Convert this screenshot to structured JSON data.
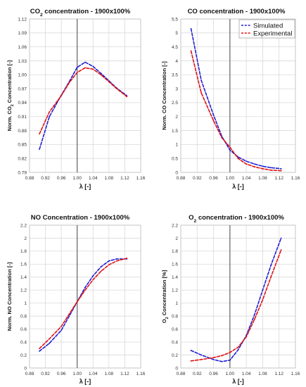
{
  "colors": {
    "simulated": "#1f1fd6",
    "experimental": "#e01010",
    "grid": "#d9d9d9",
    "refline": "#555555"
  },
  "chart_data": [
    {
      "type": "line",
      "title_parts": [
        "CO",
        "2",
        " concentration - 1900x100%"
      ],
      "xlabel": "λ [-]",
      "ylabel_parts": [
        "Norm. CO",
        "2",
        " Concentration [-]"
      ],
      "xlim": [
        0.88,
        1.16
      ],
      "ylim": [
        0.79,
        1.12
      ],
      "xticks": [
        "0.88",
        "0.92",
        "0.96",
        "1.00",
        "1.04",
        "1.08",
        "1.12",
        "1.16"
      ],
      "yticks": [
        "0.79",
        "0.82",
        "0.85",
        "0.88",
        "0.91",
        "0.94",
        "0.97",
        "1.00",
        "1.03",
        "1.06",
        "1.09",
        "1.12"
      ],
      "refline_x": 1.0,
      "grid": true,
      "series": [
        {
          "name": "Simulated",
          "x": [
            0.905,
            0.93,
            0.96,
            0.98,
            1.0,
            1.02,
            1.04,
            1.06,
            1.08,
            1.1,
            1.125
          ],
          "y": [
            0.84,
            0.91,
            0.956,
            0.985,
            1.016,
            1.027,
            1.018,
            1.003,
            0.987,
            0.971,
            0.955
          ]
        },
        {
          "name": "Experimental",
          "x": [
            0.905,
            0.93,
            0.96,
            0.98,
            1.0,
            1.02,
            1.04,
            1.06,
            1.08,
            1.1,
            1.125
          ],
          "y": [
            0.873,
            0.92,
            0.955,
            0.983,
            1.005,
            1.015,
            1.012,
            1.0,
            0.985,
            0.97,
            0.953
          ]
        }
      ]
    },
    {
      "type": "line",
      "title_parts": [
        "CO concentration - 1900x100%"
      ],
      "xlabel": "λ [-]",
      "ylabel_parts": [
        "Norm. CO Concentration [-]"
      ],
      "xlim": [
        0.88,
        1.16
      ],
      "ylim": [
        0,
        5.5
      ],
      "xticks": [
        "0.88",
        "0.92",
        "0.96",
        "1.00",
        "1.04",
        "1.08",
        "1.12",
        "1.16"
      ],
      "yticks": [
        "0",
        "0.5",
        "1",
        "1.5",
        "2",
        "2.5",
        "3",
        "3.5",
        "4",
        "4.5",
        "5",
        "5.5"
      ],
      "refline_x": 1.0,
      "grid": true,
      "legend": {
        "position": "top-right",
        "entries": [
          "Simulated",
          "Experimental"
        ]
      },
      "series": [
        {
          "name": "Simulated",
          "x": [
            0.905,
            0.93,
            0.96,
            0.98,
            1.0,
            1.02,
            1.04,
            1.06,
            1.08,
            1.1,
            1.125
          ],
          "y": [
            5.15,
            3.3,
            2.05,
            1.3,
            0.8,
            0.55,
            0.4,
            0.3,
            0.22,
            0.17,
            0.13
          ]
        },
        {
          "name": "Experimental",
          "x": [
            0.905,
            0.93,
            0.96,
            0.98,
            1.0,
            1.02,
            1.04,
            1.06,
            1.08,
            1.1,
            1.125
          ],
          "y": [
            4.35,
            2.85,
            1.85,
            1.25,
            0.9,
            0.5,
            0.3,
            0.2,
            0.13,
            0.08,
            0.06
          ]
        }
      ]
    },
    {
      "type": "line",
      "title_parts": [
        "NO Concentration - 1900x100%"
      ],
      "xlabel": "λ [-]",
      "ylabel_parts": [
        "Norm. NO Concentration [-]"
      ],
      "xlim": [
        0.88,
        1.16
      ],
      "ylim": [
        0,
        2.2
      ],
      "xticks": [
        "0.88",
        "0.92",
        "0.96",
        "1.00",
        "1.04",
        "1.08",
        "1.12",
        "1.16"
      ],
      "yticks": [
        "0",
        "0.2",
        "0.4",
        "0.6",
        "0.8",
        "1",
        "1.2",
        "1.4",
        "1.6",
        "1.8",
        "2",
        "2.2"
      ],
      "refline_x": 1.0,
      "grid": true,
      "series": [
        {
          "name": "Simulated",
          "x": [
            0.905,
            0.93,
            0.96,
            0.98,
            1.0,
            1.02,
            1.04,
            1.06,
            1.08,
            1.1,
            1.125
          ],
          "y": [
            0.26,
            0.38,
            0.58,
            0.8,
            1.02,
            1.24,
            1.42,
            1.56,
            1.65,
            1.68,
            1.68
          ]
        },
        {
          "name": "Experimental",
          "x": [
            0.905,
            0.93,
            0.96,
            0.98,
            1.0,
            1.02,
            1.04,
            1.06,
            1.08,
            1.1,
            1.125
          ],
          "y": [
            0.3,
            0.45,
            0.64,
            0.83,
            1.02,
            1.2,
            1.36,
            1.49,
            1.59,
            1.65,
            1.69
          ]
        }
      ]
    },
    {
      "type": "line",
      "title_parts": [
        "O",
        "2",
        " concentration - 1900x100%"
      ],
      "xlabel": "λ [-]",
      "ylabel_parts": [
        "O",
        "2",
        " Concentration [%]"
      ],
      "xlim": [
        0.88,
        1.16
      ],
      "ylim": [
        0,
        2.2
      ],
      "xticks": [
        "0.88",
        "0.92",
        "0.96",
        "1.00",
        "1.04",
        "1.08",
        "1.12",
        "1.16"
      ],
      "yticks": [
        "0",
        "0.2",
        "0.4",
        "0.6",
        "0.8",
        "1",
        "1.2",
        "1.4",
        "1.6",
        "1.8",
        "2",
        "2.2"
      ],
      "refline_x": 1.0,
      "grid": true,
      "series": [
        {
          "name": "Simulated",
          "x": [
            0.905,
            0.93,
            0.96,
            0.98,
            1.0,
            1.02,
            1.04,
            1.06,
            1.08,
            1.1,
            1.125
          ],
          "y": [
            0.27,
            0.2,
            0.13,
            0.1,
            0.12,
            0.28,
            0.5,
            0.82,
            1.2,
            1.58,
            2.0
          ]
        },
        {
          "name": "Experimental",
          "x": [
            0.905,
            0.93,
            0.96,
            0.98,
            1.0,
            1.02,
            1.04,
            1.06,
            1.08,
            1.1,
            1.125
          ],
          "y": [
            0.11,
            0.13,
            0.16,
            0.19,
            0.24,
            0.32,
            0.48,
            0.75,
            1.05,
            1.4,
            1.82
          ]
        }
      ]
    }
  ]
}
